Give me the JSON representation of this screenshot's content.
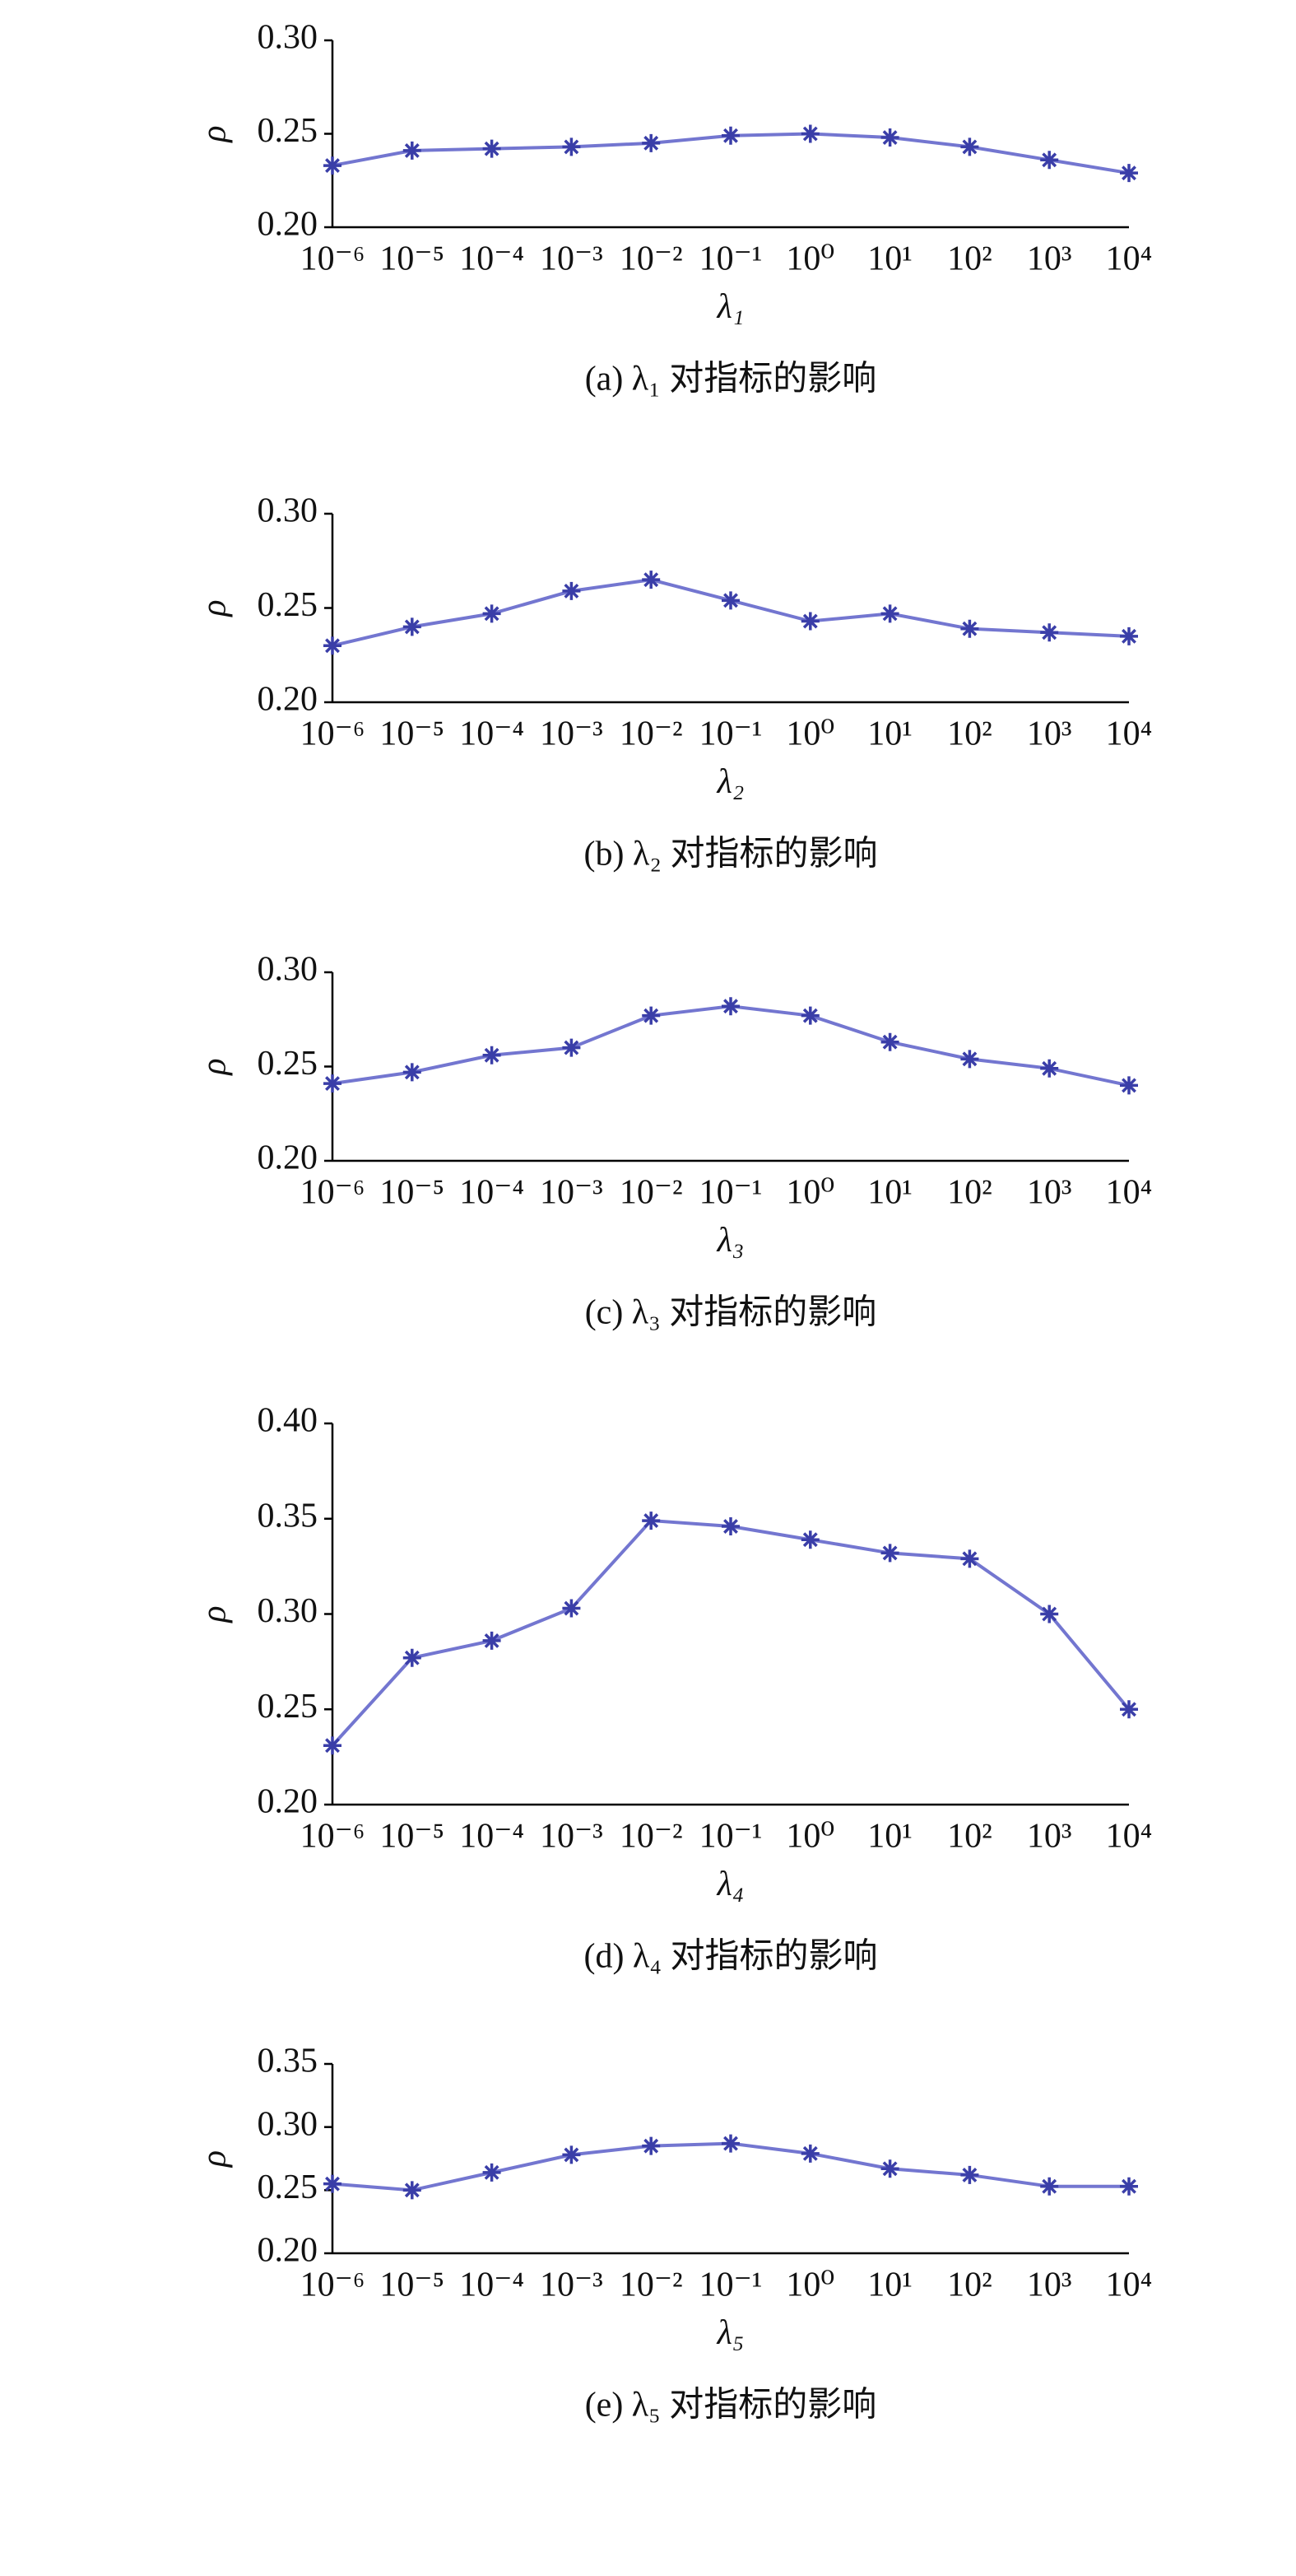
{
  "chart_data": [
    {
      "type": "line",
      "ylabel": "ρ",
      "xlabel": "λ₁",
      "caption": "(a) λ₁ 对指标的影响",
      "categories": [
        "10⁻⁶",
        "10⁻⁵",
        "10⁻⁴",
        "10⁻³",
        "10⁻²",
        "10⁻¹",
        "10⁰",
        "10¹",
        "10²",
        "10³",
        "10⁴"
      ],
      "values": [
        0.233,
        0.241,
        0.242,
        0.243,
        0.245,
        0.249,
        0.25,
        0.248,
        0.243,
        0.236,
        0.229
      ],
      "color": "#5a5ec8",
      "ylim": [
        0.2,
        0.3
      ],
      "yticks": [
        {
          "value": 0.2,
          "label": "0.20"
        },
        {
          "value": 0.25,
          "label": "0.25"
        },
        {
          "value": 0.3,
          "label": "0.30"
        }
      ]
    },
    {
      "type": "line",
      "ylabel": "ρ",
      "xlabel": "λ₂",
      "caption": "(b) λ₂ 对指标的影响",
      "categories": [
        "10⁻⁶",
        "10⁻⁵",
        "10⁻⁴",
        "10⁻³",
        "10⁻²",
        "10⁻¹",
        "10⁰",
        "10¹",
        "10²",
        "10³",
        "10⁴"
      ],
      "values": [
        0.23,
        0.24,
        0.247,
        0.259,
        0.265,
        0.254,
        0.243,
        0.247,
        0.239,
        0.237,
        0.235
      ],
      "color": "#5a5ec8",
      "ylim": [
        0.2,
        0.3
      ],
      "yticks": [
        {
          "value": 0.2,
          "label": "0.20"
        },
        {
          "value": 0.25,
          "label": "0.25"
        },
        {
          "value": 0.3,
          "label": "0.30"
        }
      ]
    },
    {
      "type": "line",
      "ylabel": "ρ",
      "xlabel": "λ₃",
      "caption": "(c) λ₃ 对指标的影响",
      "categories": [
        "10⁻⁶",
        "10⁻⁵",
        "10⁻⁴",
        "10⁻³",
        "10⁻²",
        "10⁻¹",
        "10⁰",
        "10¹",
        "10²",
        "10³",
        "10⁴"
      ],
      "values": [
        0.241,
        0.247,
        0.256,
        0.26,
        0.277,
        0.282,
        0.277,
        0.263,
        0.254,
        0.249,
        0.24
      ],
      "color": "#5a5ec8",
      "ylim": [
        0.2,
        0.3
      ],
      "yticks": [
        {
          "value": 0.2,
          "label": "0.20"
        },
        {
          "value": 0.25,
          "label": "0.25"
        },
        {
          "value": 0.3,
          "label": "0.30"
        }
      ]
    },
    {
      "type": "line",
      "ylabel": "ρ",
      "xlabel": "λ₄",
      "caption": "(d) λ₄ 对指标的影响",
      "categories": [
        "10⁻⁶",
        "10⁻⁵",
        "10⁻⁴",
        "10⁻³",
        "10⁻²",
        "10⁻¹",
        "10⁰",
        "10¹",
        "10²",
        "10³",
        "10⁴"
      ],
      "values": [
        0.231,
        0.277,
        0.286,
        0.303,
        0.349,
        0.346,
        0.339,
        0.332,
        0.329,
        0.3,
        0.25
      ],
      "color": "#5a5ec8",
      "ylim": [
        0.2,
        0.4
      ],
      "yticks": [
        {
          "value": 0.2,
          "label": "0.20"
        },
        {
          "value": 0.25,
          "label": "0.25"
        },
        {
          "value": 0.3,
          "label": "0.30"
        },
        {
          "value": 0.35,
          "label": "0.35"
        },
        {
          "value": 0.4,
          "label": "0.40"
        }
      ]
    },
    {
      "type": "line",
      "ylabel": "ρ",
      "xlabel": "λ₅",
      "caption": "(e) λ₅ 对指标的影响",
      "categories": [
        "10⁻⁶",
        "10⁻⁵",
        "10⁻⁴",
        "10⁻³",
        "10⁻²",
        "10⁻¹",
        "10⁰",
        "10¹",
        "10²",
        "10³",
        "10⁴"
      ],
      "values": [
        0.255,
        0.25,
        0.264,
        0.278,
        0.285,
        0.287,
        0.279,
        0.267,
        0.262,
        0.253,
        0.253
      ],
      "color": "#5a5ec8",
      "ylim": [
        0.2,
        0.35
      ],
      "yticks": [
        {
          "value": 0.2,
          "label": "0.20"
        },
        {
          "value": 0.25,
          "label": "0.25"
        },
        {
          "value": 0.3,
          "label": "0.30"
        },
        {
          "value": 0.35,
          "label": "0.35"
        }
      ]
    }
  ]
}
